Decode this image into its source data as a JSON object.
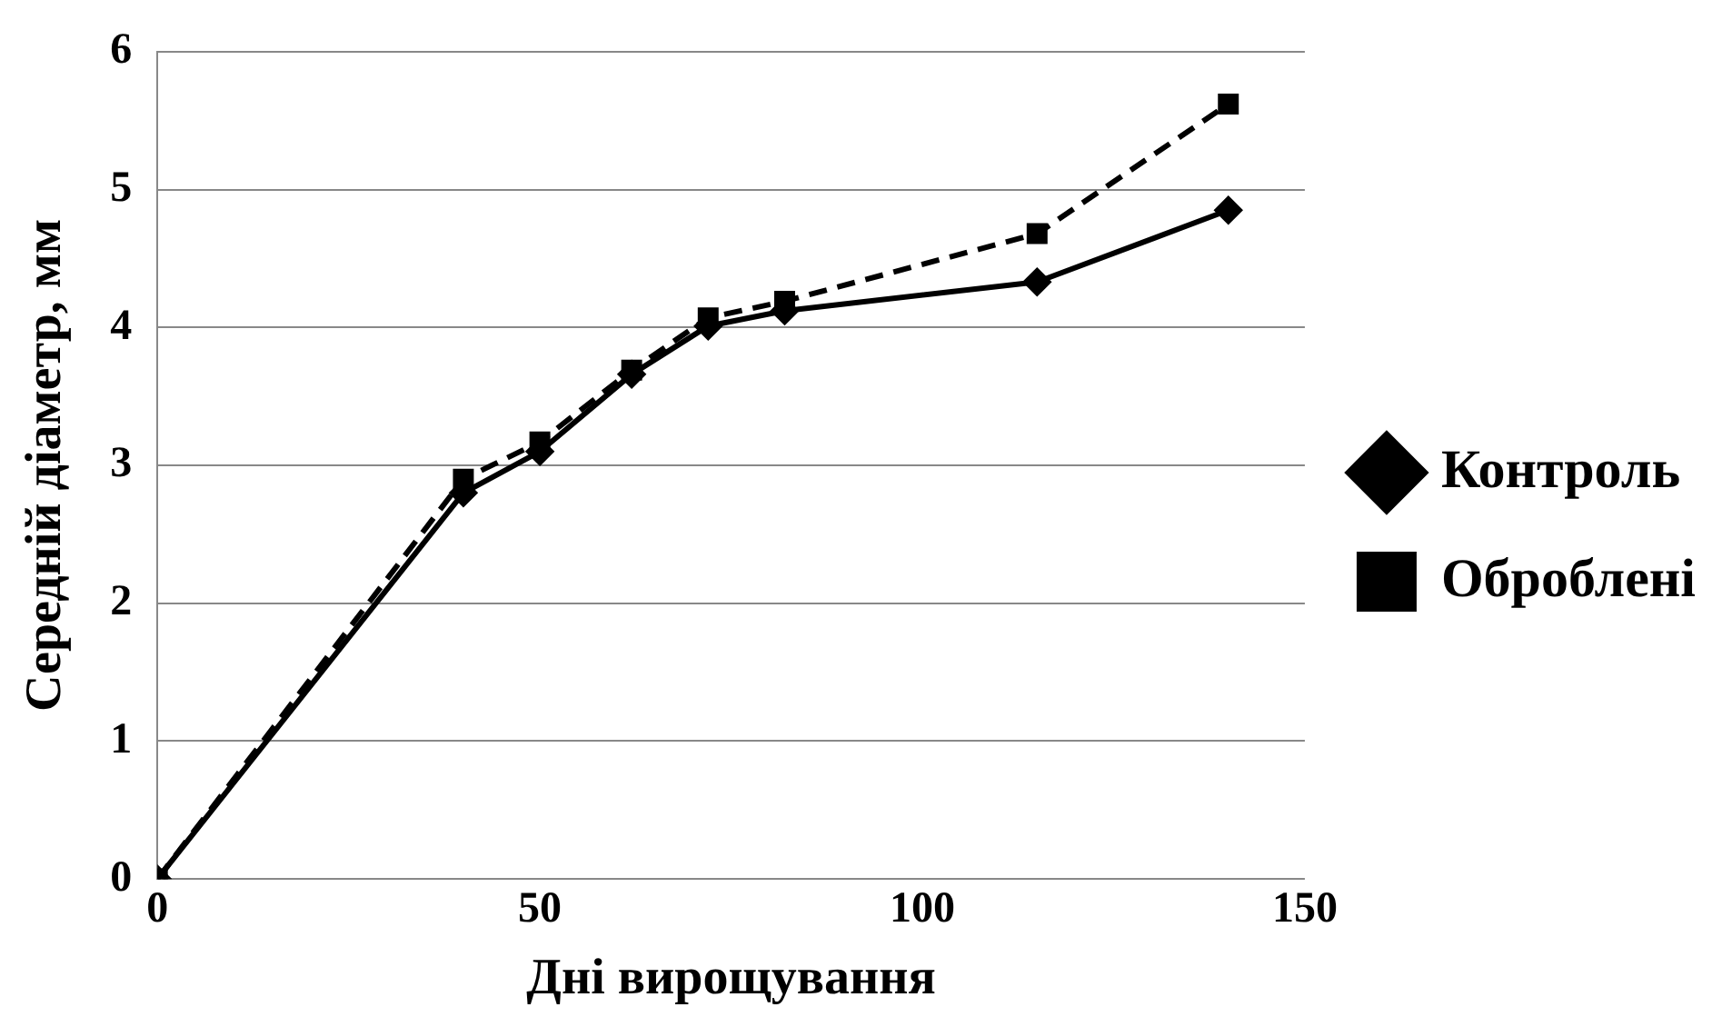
{
  "chart_data": {
    "type": "line",
    "xlabel": "Дні вирощування",
    "ylabel": "Середній діаметр, мм",
    "xlim": [
      0,
      150
    ],
    "xticks": [
      0,
      50,
      100,
      150
    ],
    "ylim": [
      0,
      6
    ],
    "yticks": [
      0,
      1,
      2,
      3,
      4,
      5,
      6
    ],
    "grid": "y",
    "legend": "right",
    "series": [
      {
        "name": "Контроль",
        "color": "#000000",
        "marker": "diamond",
        "line_style": "solid",
        "x": [
          0,
          40,
          50,
          62,
          72,
          82,
          115,
          140
        ],
        "values": [
          0,
          2.8,
          3.1,
          3.66,
          4.01,
          4.12,
          4.33,
          4.85
        ]
      },
      {
        "name": "Оброблені",
        "color": "#000000",
        "marker": "square",
        "line_style": "dashed",
        "x": [
          0,
          40,
          50,
          62,
          72,
          82,
          115,
          140
        ],
        "values": [
          0,
          2.9,
          3.17,
          3.69,
          4.07,
          4.19,
          4.68,
          5.62
        ]
      }
    ]
  }
}
